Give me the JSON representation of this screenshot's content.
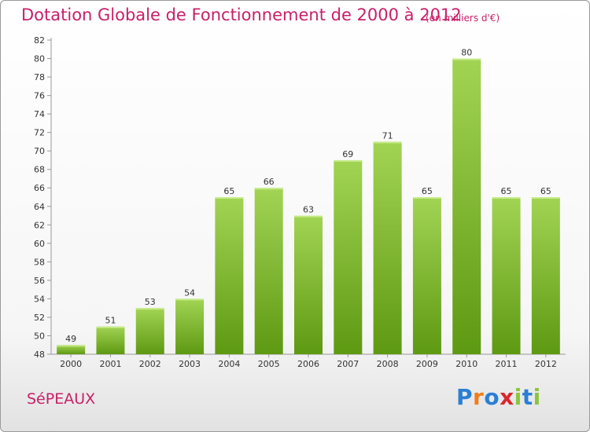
{
  "page": {
    "title": "Dotation Globale de Fonctionnement de 2000 à 2012",
    "unit_note": "(en milliers d'€)",
    "commune": "SéPEAUX",
    "logo": {
      "text": "Proxiti",
      "colors": [
        "#2a7fd4",
        "#f07e1b",
        "#2a7fd4",
        "#d8282f",
        "#8bc53f",
        "#2a7fd4",
        "#8bc53f"
      ]
    },
    "colors": {
      "title": "#c8206a",
      "bar_light": "#9ed24e",
      "bar_dark": "#5f9a13"
    }
  },
  "chart_data": {
    "type": "bar",
    "title": "Dotation Globale de Fonctionnement de 2000 à 2012",
    "xlabel": "",
    "ylabel": "",
    "categories": [
      "2000",
      "2001",
      "2002",
      "2003",
      "2004",
      "2005",
      "2006",
      "2007",
      "2008",
      "2009",
      "2010",
      "2011",
      "2012"
    ],
    "values": [
      49,
      51,
      53,
      54,
      65,
      66,
      63,
      69,
      71,
      65,
      80,
      65,
      65
    ],
    "ylim": [
      48,
      82
    ],
    "yticks": [
      48,
      50,
      52,
      54,
      56,
      58,
      60,
      62,
      64,
      66,
      68,
      70,
      72,
      74,
      76,
      78,
      80,
      82
    ],
    "grid": false,
    "legend": "none"
  }
}
